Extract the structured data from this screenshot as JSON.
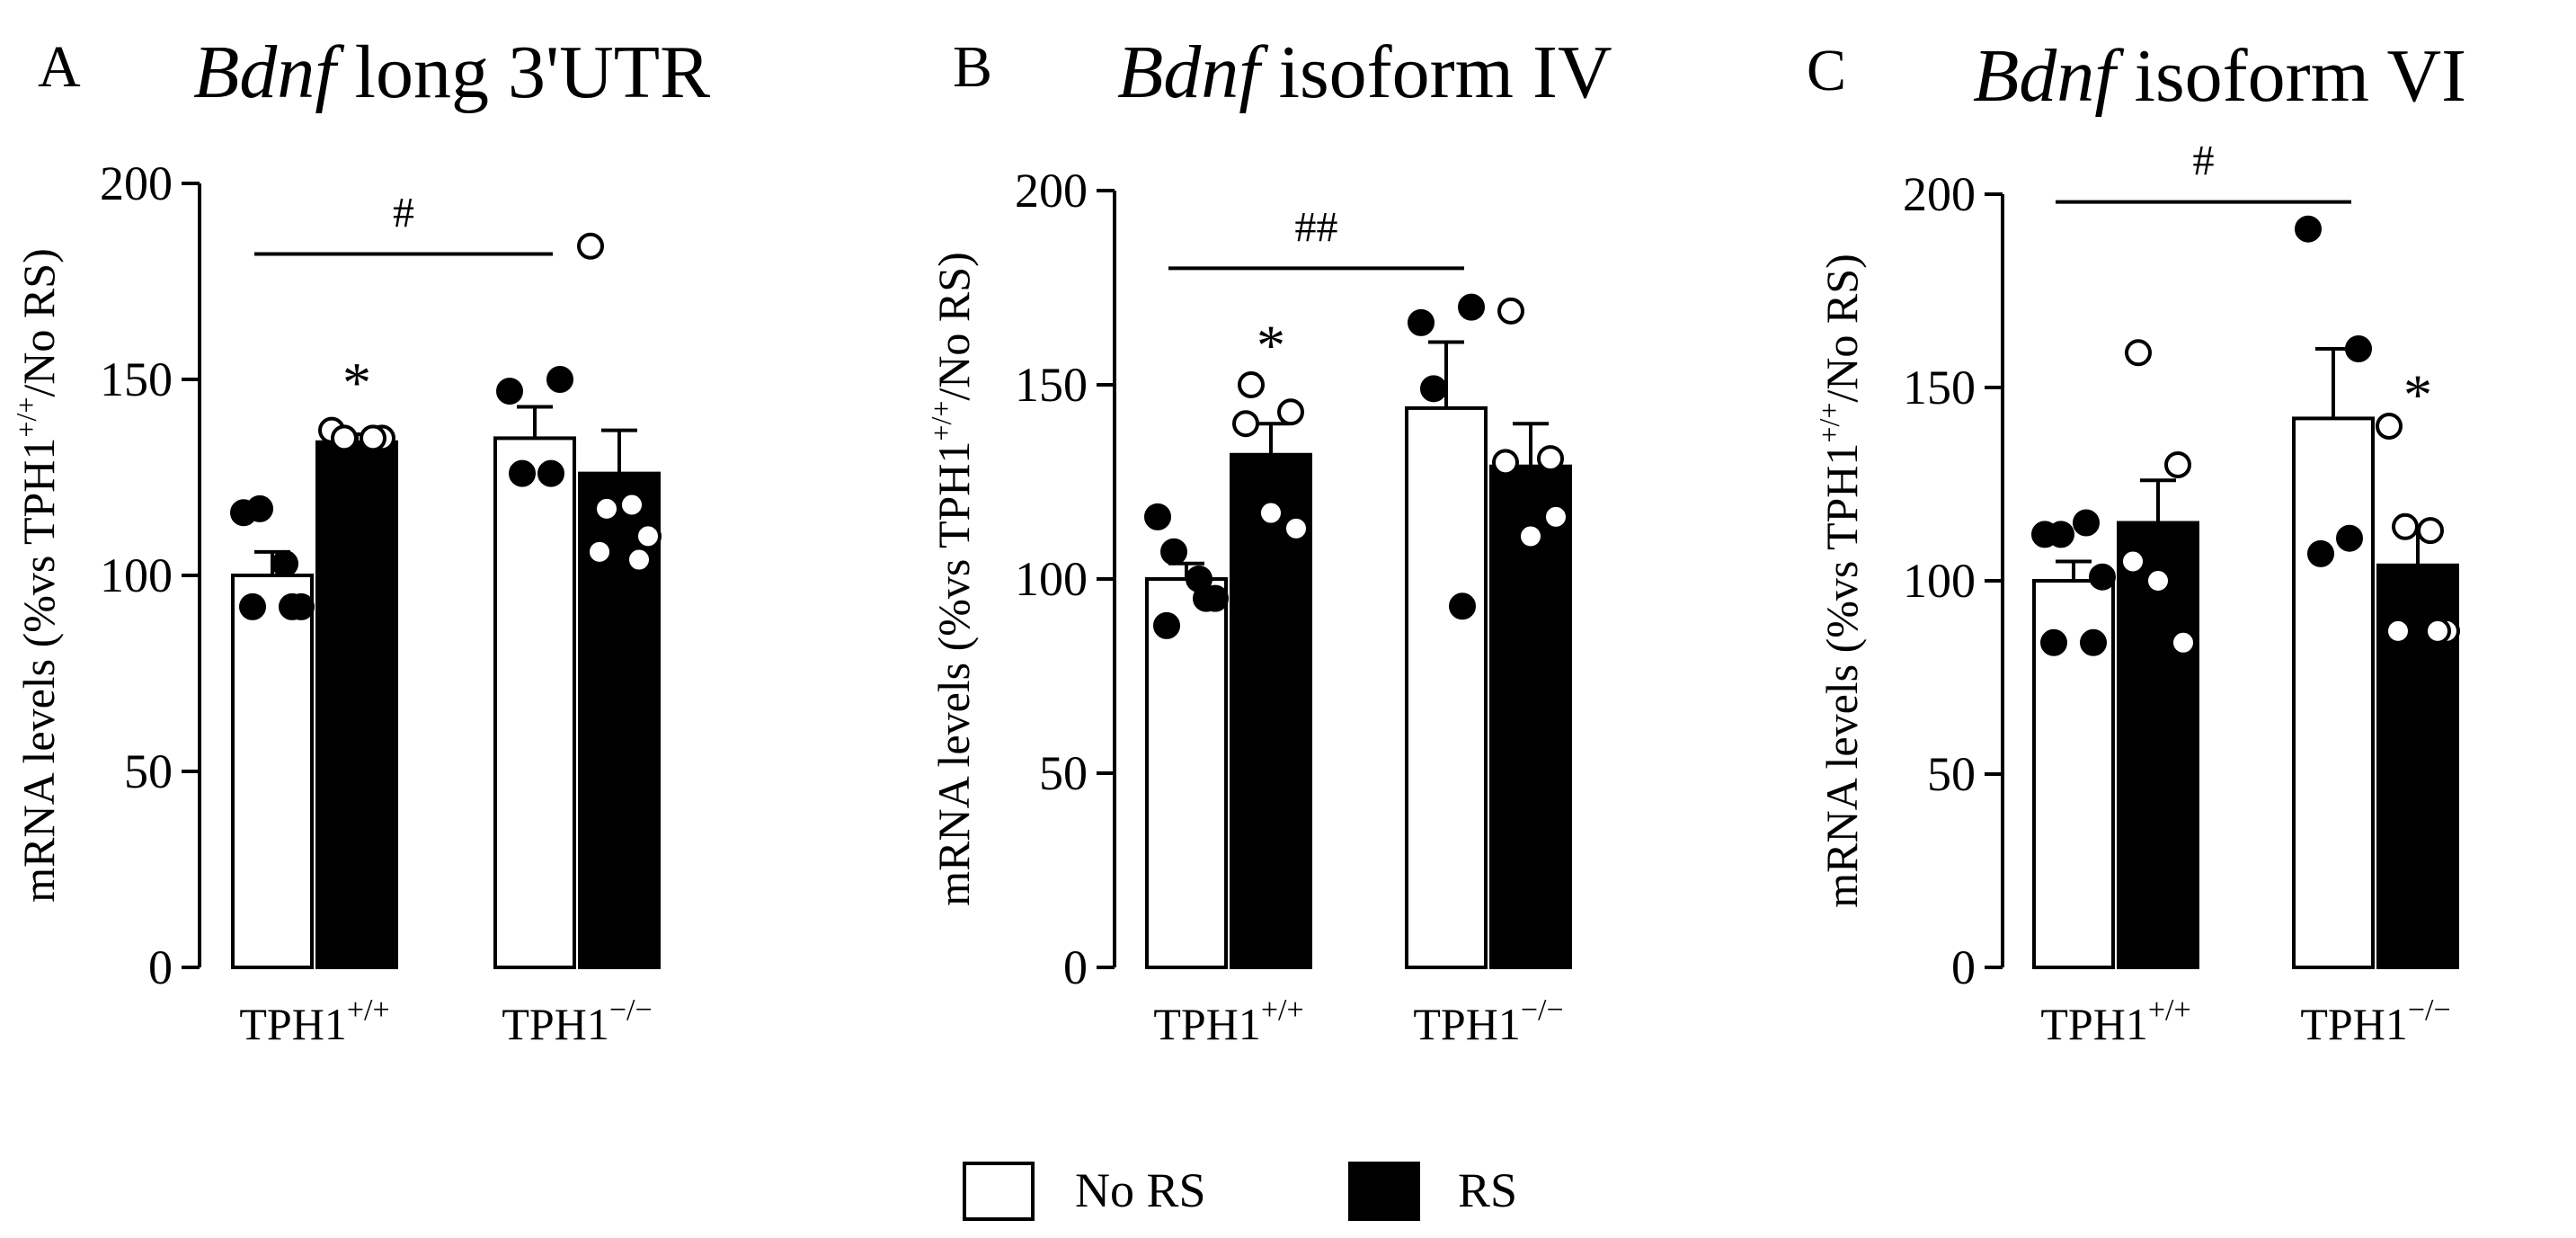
{
  "panels_common": {
    "ylabel_prefix": "mRNA levels (%vs TPH1",
    "ylabel_sup": "+/+",
    "ylabel_suffix": "/No RS)",
    "x_group_base": "TPH1",
    "legend": {
      "no_rs": "No RS",
      "rs": "RS"
    }
  },
  "chart_data": [
    {
      "type": "bar",
      "panel": "A",
      "title_italic": "Bdnf",
      "title_rest": " long 3'UTR",
      "categories": [
        "TPH1+/+",
        "TPH1−/−"
      ],
      "category_base": [
        "TPH1",
        "TPH1"
      ],
      "category_sup": [
        "+/+",
        "−/−"
      ],
      "ylim": [
        0,
        200
      ],
      "yticks": [
        0,
        50,
        100,
        150,
        200
      ],
      "series": [
        {
          "name": "No RS",
          "fill": "#ffffff"
        },
        {
          "name": "RS",
          "fill": "#000000"
        }
      ],
      "bars": [
        {
          "group": 0,
          "series": 0,
          "mean": 100,
          "sem": 6,
          "points": [
            116,
            117,
            103,
            92,
            92,
            92
          ]
        },
        {
          "group": 0,
          "series": 1,
          "mean": 134,
          "sem": 2,
          "points": [
            137,
            135,
            135,
            135
          ]
        },
        {
          "group": 1,
          "series": 0,
          "mean": 135,
          "sem": 8,
          "points": [
            147,
            150,
            126,
            126
          ]
        },
        {
          "group": 1,
          "series": 1,
          "mean": 126,
          "sem": 11,
          "points": [
            184,
            117,
            118,
            110,
            106,
            104
          ]
        }
      ],
      "annotations": [
        {
          "text": "*",
          "group": 0,
          "series": 1,
          "y": 153
        }
      ],
      "brackets": [
        {
          "text": "#",
          "from": [
            0,
            0
          ],
          "to": [
            1,
            0
          ],
          "y": 182
        }
      ]
    },
    {
      "type": "bar",
      "panel": "B",
      "title_italic": "Bdnf",
      "title_rest": " isoform IV",
      "categories": [
        "TPH1+/+",
        "TPH1−/−"
      ],
      "category_base": [
        "TPH1",
        "TPH1"
      ],
      "category_sup": [
        "+/+",
        "−/−"
      ],
      "ylim": [
        0,
        200
      ],
      "yticks": [
        0,
        50,
        100,
        150,
        200
      ],
      "series": [
        {
          "name": "No RS",
          "fill": "#ffffff"
        },
        {
          "name": "RS",
          "fill": "#000000"
        }
      ],
      "bars": [
        {
          "group": 0,
          "series": 0,
          "mean": 100,
          "sem": 4,
          "points": [
            116,
            107,
            100,
            95,
            88,
            95
          ]
        },
        {
          "group": 0,
          "series": 1,
          "mean": 132,
          "sem": 8,
          "points": [
            150,
            143,
            140,
            117,
            113
          ]
        },
        {
          "group": 1,
          "series": 0,
          "mean": 144,
          "sem": 17,
          "points": [
            166,
            170,
            149,
            93
          ]
        },
        {
          "group": 1,
          "series": 1,
          "mean": 129,
          "sem": 11,
          "points": [
            169,
            131,
            130,
            111,
            116
          ]
        }
      ],
      "annotations": [
        {
          "text": "*",
          "group": 0,
          "series": 1,
          "y": 164
        }
      ],
      "brackets": [
        {
          "text": "##",
          "from": [
            0,
            0
          ],
          "to": [
            1,
            0
          ],
          "y": 180
        }
      ]
    },
    {
      "type": "bar",
      "panel": "C",
      "title_italic": "Bdnf",
      "title_rest": " isoform VI",
      "categories": [
        "TPH1+/+",
        "TPH1−/−"
      ],
      "category_base": [
        "TPH1",
        "TPH1"
      ],
      "category_sup": [
        "+/+",
        "−/−"
      ],
      "ylim": [
        0,
        200
      ],
      "yticks": [
        0,
        50,
        100,
        150,
        200
      ],
      "series": [
        {
          "name": "No RS",
          "fill": "#ffffff"
        },
        {
          "name": "RS",
          "fill": "#000000"
        }
      ],
      "bars": [
        {
          "group": 0,
          "series": 0,
          "mean": 100,
          "sem": 5,
          "points": [
            112,
            112,
            115,
            101,
            84,
            84
          ]
        },
        {
          "group": 0,
          "series": 1,
          "mean": 115,
          "sem": 11,
          "points": [
            159,
            130,
            105,
            100,
            84
          ]
        },
        {
          "group": 1,
          "series": 0,
          "mean": 142,
          "sem": 18,
          "points": [
            191,
            160,
            107,
            111
          ]
        },
        {
          "group": 1,
          "series": 1,
          "mean": 104,
          "sem": 9,
          "points": [
            140,
            114,
            113,
            87,
            87,
            87
          ]
        }
      ],
      "annotations": [
        {
          "text": "*",
          "group": 1,
          "series": 1,
          "y": 152
        }
      ],
      "brackets": [
        {
          "text": "#",
          "from": [
            0,
            0
          ],
          "to": [
            1,
            0
          ],
          "y": 198
        }
      ]
    }
  ]
}
